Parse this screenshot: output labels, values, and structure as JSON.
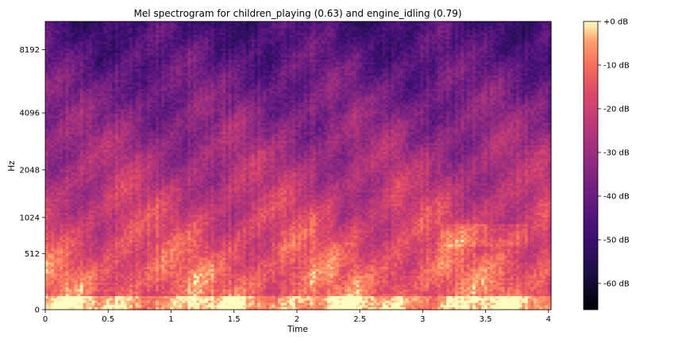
{
  "chart_data": {
    "type": "heatmap",
    "title": "Mel spectrogram for children_playing (0.63) and engine_idling (0.79)",
    "xlabel": "Time",
    "ylabel": "Hz",
    "x_ticks": [
      "0",
      "0.5",
      "1",
      "1.5",
      "2",
      "2.5",
      "3",
      "3.5",
      "4"
    ],
    "y_ticks": [
      "0",
      "512",
      "1024",
      "2048",
      "4096",
      "8192"
    ],
    "xlim": [
      0,
      4.02
    ],
    "y_scale": "mel",
    "colormap": "magma",
    "colorbar": {
      "range": [
        -66,
        0
      ],
      "ticks": [
        "+0 dB",
        "-10 dB",
        "-20 dB",
        "-30 dB",
        "-40 dB",
        "-50 dB",
        "-60 dB"
      ],
      "tick_values": [
        0,
        -10,
        -20,
        -30,
        -40,
        -50,
        -60
      ]
    },
    "grid": false,
    "legend": "colorbar-right"
  }
}
